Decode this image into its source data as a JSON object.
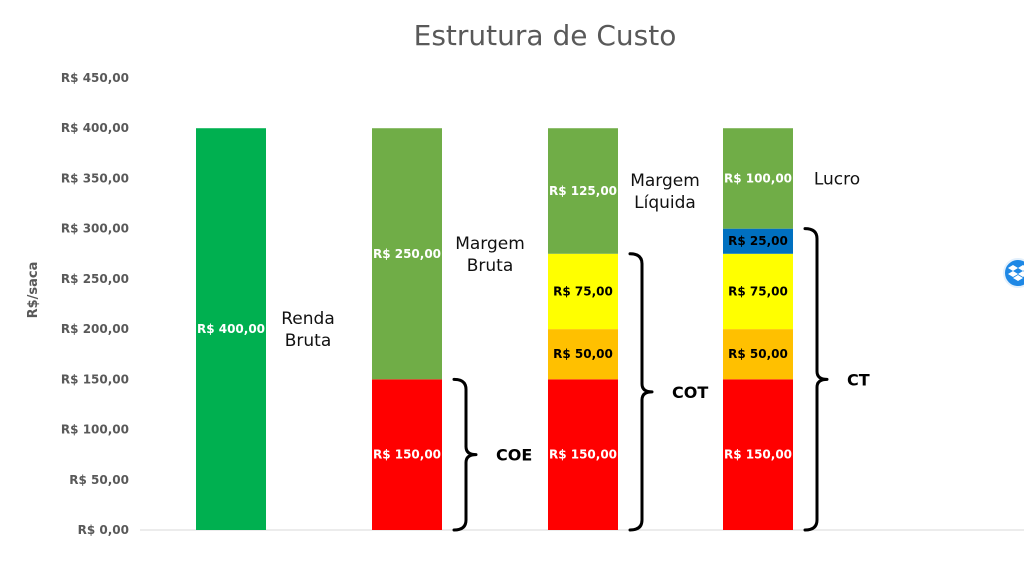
{
  "chart_data": {
    "type": "bar",
    "stacked": true,
    "title": "Estrutura de Custo",
    "ylabel": "R$/saca",
    "ylim": [
      0,
      450
    ],
    "ytick_step": 50,
    "yticks": [
      "R$ 0,00",
      "R$ 50,00",
      "R$ 100,00",
      "R$ 150,00",
      "R$ 200,00",
      "R$ 250,00",
      "R$ 300,00",
      "R$ 350,00",
      "R$ 400,00",
      "R$ 450,00"
    ],
    "grid": false,
    "legend": "none",
    "bars": [
      {
        "segments": [
          {
            "value": 400,
            "label": "R$ 400,00",
            "color": "#00b050",
            "text_color": "#ffffff"
          }
        ],
        "annotation": [
          "Renda",
          "Bruta"
        ]
      },
      {
        "segments": [
          {
            "value": 150,
            "label": "R$ 150,00",
            "color": "#ff0000",
            "text_color": "#ffffff"
          },
          {
            "value": 250,
            "label": "R$ 250,00",
            "color": "#70ad47",
            "text_color": "#ffffff"
          }
        ],
        "annotation": [
          "Margem",
          "Bruta"
        ],
        "brace": {
          "from": 0,
          "to": 150,
          "label": "COE"
        }
      },
      {
        "segments": [
          {
            "value": 150,
            "label": "R$ 150,00",
            "color": "#ff0000",
            "text_color": "#ffffff"
          },
          {
            "value": 50,
            "label": "R$ 50,00",
            "color": "#ffc000",
            "text_color": "#000000"
          },
          {
            "value": 75,
            "label": "R$ 75,00",
            "color": "#ffff00",
            "text_color": "#000000"
          },
          {
            "value": 125,
            "label": "R$ 125,00",
            "color": "#70ad47",
            "text_color": "#ffffff"
          }
        ],
        "annotation": [
          "Margem",
          "Líquida"
        ],
        "brace": {
          "from": 0,
          "to": 275,
          "label": "COT"
        }
      },
      {
        "segments": [
          {
            "value": 150,
            "label": "R$ 150,00",
            "color": "#ff0000",
            "text_color": "#ffffff"
          },
          {
            "value": 50,
            "label": "R$ 50,00",
            "color": "#ffc000",
            "text_color": "#000000"
          },
          {
            "value": 75,
            "label": "R$ 75,00",
            "color": "#ffff00",
            "text_color": "#000000"
          },
          {
            "value": 25,
            "label": "R$ 25,00",
            "color": "#0070c0",
            "text_color": "#000000"
          },
          {
            "value": 100,
            "label": "R$ 100,00",
            "color": "#70ad47",
            "text_color": "#ffffff"
          }
        ],
        "annotation": [
          "Lucro"
        ],
        "brace": {
          "from": 0,
          "to": 300,
          "label": "CT"
        }
      }
    ]
  },
  "widgets": {
    "dropbox": {
      "icon": "dropbox-icon",
      "color": "#1e88e5"
    }
  }
}
